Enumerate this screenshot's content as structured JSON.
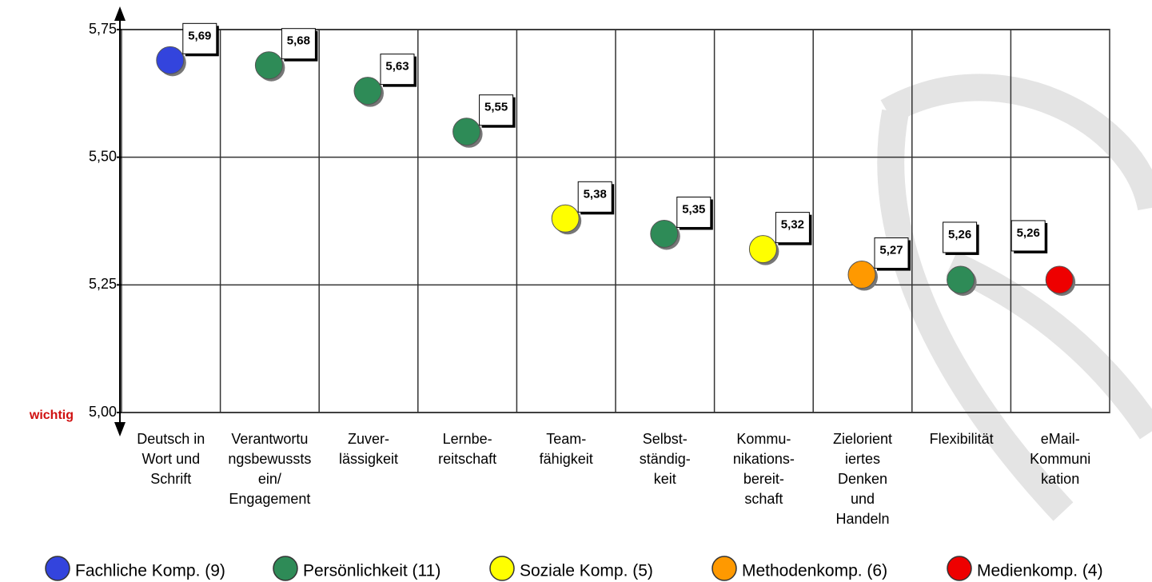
{
  "chart_data": {
    "type": "dot",
    "categories": [
      "Deutsch in\nWort und\nSchrift",
      "Verantwortu\nngsbewussts\nein/\nEngagement",
      "Zuver-\nlässigkeit",
      "Lernbe-\nreitschaft",
      "Team-\nfähigkeit",
      "Selbst-\nständig-\nkeit",
      "Kommu-\nnikations-\nbereit-\nschaft",
      "Zielorient\niertes\nDenken\nund\nHandeln",
      "Flexibilität",
      "eMail-\nKommuni\nkation"
    ],
    "series": [
      {
        "name": "Fachliche Komp. (9)",
        "color": "#3344dd",
        "values": [
          5.69,
          null,
          null,
          null,
          null,
          null,
          null,
          null,
          null,
          null
        ],
        "value_labels": [
          "5,69",
          null,
          null,
          null,
          null,
          null,
          null,
          null,
          null,
          null
        ]
      },
      {
        "name": "Persönlichkeit (11)",
        "color": "#2e8b57",
        "values": [
          null,
          5.68,
          5.63,
          5.55,
          null,
          5.35,
          null,
          null,
          5.26,
          null
        ],
        "value_labels": [
          null,
          "5,68",
          "5,63",
          "5,55",
          null,
          "5,35",
          null,
          null,
          "5,26",
          null
        ]
      },
      {
        "name": "Soziale Komp. (5)",
        "color": "#ffff00",
        "values": [
          null,
          null,
          null,
          null,
          5.38,
          null,
          5.32,
          null,
          null,
          null
        ],
        "value_labels": [
          null,
          null,
          null,
          null,
          "5,38",
          null,
          "5,32",
          null,
          null,
          null
        ]
      },
      {
        "name": "Methodenkomp. (6)",
        "color": "#ff9900",
        "values": [
          null,
          null,
          null,
          null,
          null,
          null,
          null,
          5.27,
          null,
          null
        ],
        "value_labels": [
          null,
          null,
          null,
          null,
          null,
          null,
          null,
          "5,27",
          null,
          null
        ]
      },
      {
        "name": "Medienkomp. (4)",
        "color": "#ee0000",
        "values": [
          null,
          null,
          null,
          null,
          null,
          null,
          null,
          null,
          null,
          5.26
        ],
        "value_labels": [
          null,
          null,
          null,
          null,
          null,
          null,
          null,
          null,
          null,
          "5,26"
        ]
      }
    ],
    "ylim": [
      5.0,
      5.75
    ],
    "yticks": [
      {
        "value": 5.0,
        "label": "5,00"
      },
      {
        "value": 5.25,
        "label": "5,25"
      },
      {
        "value": 5.5,
        "label": "5,50"
      },
      {
        "value": 5.75,
        "label": "5,75"
      }
    ],
    "annotation": "wichtig",
    "grid": true
  }
}
